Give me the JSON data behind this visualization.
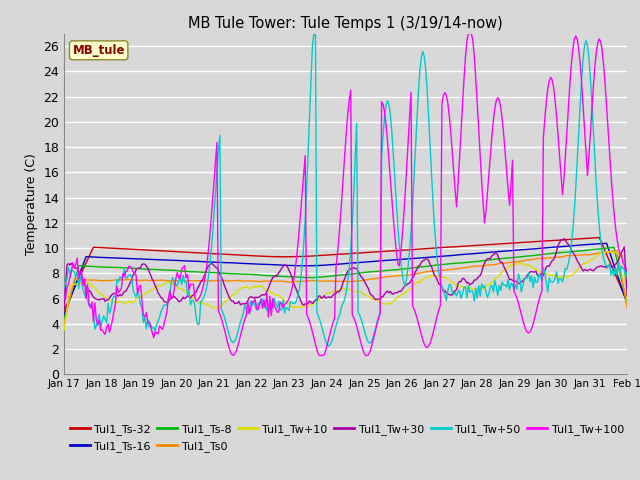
{
  "title": "MB Tule Tower: Tule Temps 1 (3/19/14-now)",
  "ylabel": "Temperature (C)",
  "ylim": [
    0,
    27
  ],
  "yticks": [
    0,
    2,
    4,
    6,
    8,
    10,
    12,
    14,
    16,
    18,
    20,
    22,
    24,
    26
  ],
  "xtick_labels": [
    "Jan 17",
    "Jan 18",
    "Jan 19",
    "Jan 20",
    "Jan 21",
    "Jan 22",
    "Jan 23",
    "Jan 24",
    "Jan 25",
    "Jan 26",
    "Jan 27",
    "Jan 28",
    "Jan 29",
    "Jan 30",
    "Jan 31",
    "Feb 1"
  ],
  "legend_label": "MB_tule",
  "series_colors": {
    "Tul1_Ts-32": "#cc0000",
    "Tul1_Ts-16": "#0000cc",
    "Tul1_Ts-8": "#00bb00",
    "Tul1_Ts0": "#ff8800",
    "Tul1_Tw+10": "#dddd00",
    "Tul1_Tw+30": "#aa00aa",
    "Tul1_Tw+50": "#00cccc",
    "Tul1_Tw+100": "#ff00ff"
  },
  "background_color": "#d8d8d8",
  "plot_bg_color": "#d8d8d8",
  "grid_color": "#ffffff"
}
